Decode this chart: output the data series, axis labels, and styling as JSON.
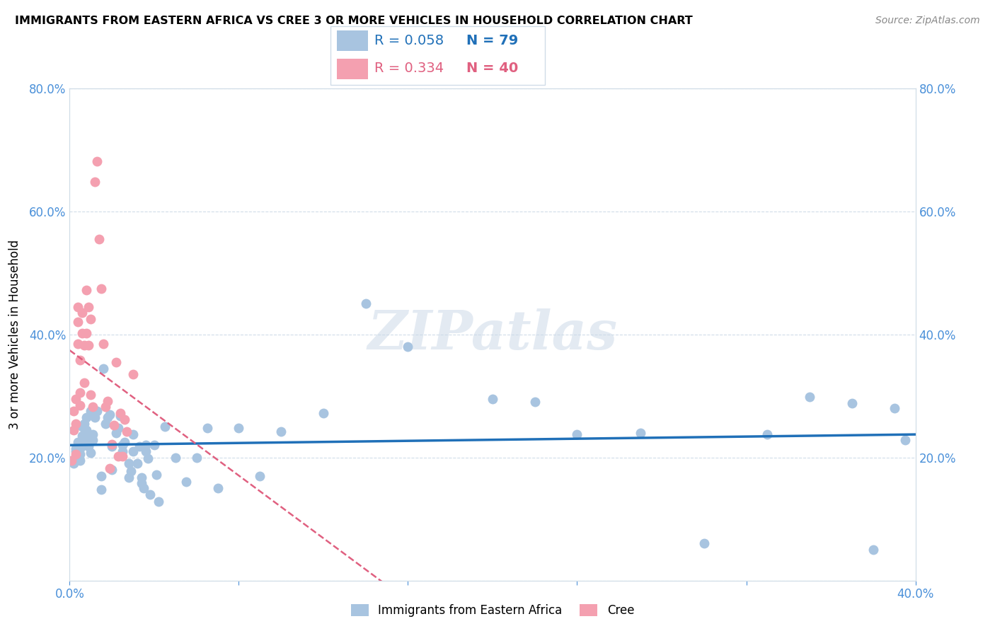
{
  "title": "IMMIGRANTS FROM EASTERN AFRICA VS CREE 3 OR MORE VEHICLES IN HOUSEHOLD CORRELATION CHART",
  "source": "Source: ZipAtlas.com",
  "ylabel": "3 or more Vehicles in Household",
  "xlim": [
    0.0,
    0.4
  ],
  "ylim": [
    0.0,
    0.8
  ],
  "xticks": [
    0.0,
    0.08,
    0.16,
    0.24,
    0.32,
    0.4
  ],
  "yticks": [
    0.0,
    0.2,
    0.4,
    0.6,
    0.8
  ],
  "xtick_labels": [
    "0.0%",
    "",
    "",
    "",
    "",
    "40.0%"
  ],
  "ytick_labels_left": [
    "",
    "20.0%",
    "40.0%",
    "60.0%",
    "80.0%"
  ],
  "ytick_labels_right": [
    "",
    "20.0%",
    "40.0%",
    "60.0%",
    "80.0%"
  ],
  "series1_label": "Immigrants from Eastern Africa",
  "series1_color": "#a8c4e0",
  "series1_R": "0.058",
  "series1_N": "79",
  "series1_line_color": "#2070b8",
  "series2_label": "Cree",
  "series2_color": "#f4a0b0",
  "series2_R": "0.334",
  "series2_N": "40",
  "series2_line_color": "#e06080",
  "watermark": "ZIPatlas",
  "tick_color": "#4a90d9",
  "grid_color": "#d0dce8",
  "series1_x": [
    0.001,
    0.002,
    0.003,
    0.003,
    0.004,
    0.004,
    0.005,
    0.005,
    0.005,
    0.006,
    0.006,
    0.006,
    0.007,
    0.007,
    0.007,
    0.008,
    0.008,
    0.009,
    0.009,
    0.01,
    0.01,
    0.011,
    0.011,
    0.012,
    0.013,
    0.015,
    0.015,
    0.016,
    0.017,
    0.018,
    0.019,
    0.02,
    0.02,
    0.022,
    0.023,
    0.024,
    0.025,
    0.025,
    0.026,
    0.028,
    0.028,
    0.029,
    0.03,
    0.03,
    0.032,
    0.033,
    0.034,
    0.034,
    0.035,
    0.036,
    0.036,
    0.037,
    0.038,
    0.04,
    0.041,
    0.042,
    0.045,
    0.05,
    0.055,
    0.06,
    0.065,
    0.07,
    0.08,
    0.09,
    0.1,
    0.12,
    0.14,
    0.16,
    0.2,
    0.22,
    0.24,
    0.27,
    0.3,
    0.33,
    0.35,
    0.37,
    0.38,
    0.39,
    0.395
  ],
  "series1_y": [
    0.195,
    0.19,
    0.215,
    0.21,
    0.225,
    0.22,
    0.205,
    0.215,
    0.195,
    0.225,
    0.25,
    0.235,
    0.22,
    0.255,
    0.225,
    0.265,
    0.245,
    0.218,
    0.235,
    0.208,
    0.275,
    0.238,
    0.228,
    0.265,
    0.275,
    0.148,
    0.17,
    0.345,
    0.255,
    0.265,
    0.27,
    0.218,
    0.18,
    0.24,
    0.248,
    0.268,
    0.21,
    0.22,
    0.225,
    0.19,
    0.168,
    0.178,
    0.238,
    0.21,
    0.19,
    0.218,
    0.168,
    0.158,
    0.15,
    0.22,
    0.21,
    0.198,
    0.14,
    0.22,
    0.172,
    0.128,
    0.25,
    0.2,
    0.16,
    0.2,
    0.248,
    0.15,
    0.248,
    0.17,
    0.242,
    0.272,
    0.45,
    0.38,
    0.295,
    0.29,
    0.238,
    0.24,
    0.06,
    0.238,
    0.298,
    0.288,
    0.05,
    0.28,
    0.228
  ],
  "series2_x": [
    0.001,
    0.002,
    0.002,
    0.003,
    0.003,
    0.003,
    0.004,
    0.004,
    0.004,
    0.005,
    0.005,
    0.005,
    0.006,
    0.006,
    0.007,
    0.007,
    0.008,
    0.008,
    0.009,
    0.009,
    0.01,
    0.01,
    0.011,
    0.012,
    0.013,
    0.014,
    0.015,
    0.016,
    0.017,
    0.018,
    0.019,
    0.02,
    0.021,
    0.022,
    0.023,
    0.024,
    0.025,
    0.026,
    0.027,
    0.03
  ],
  "series2_y": [
    0.195,
    0.245,
    0.275,
    0.255,
    0.295,
    0.205,
    0.385,
    0.42,
    0.445,
    0.285,
    0.358,
    0.305,
    0.435,
    0.402,
    0.382,
    0.322,
    0.402,
    0.472,
    0.445,
    0.382,
    0.425,
    0.302,
    0.282,
    0.648,
    0.682,
    0.555,
    0.475,
    0.385,
    0.282,
    0.292,
    0.182,
    0.222,
    0.252,
    0.355,
    0.202,
    0.272,
    0.202,
    0.262,
    0.242,
    0.335
  ]
}
